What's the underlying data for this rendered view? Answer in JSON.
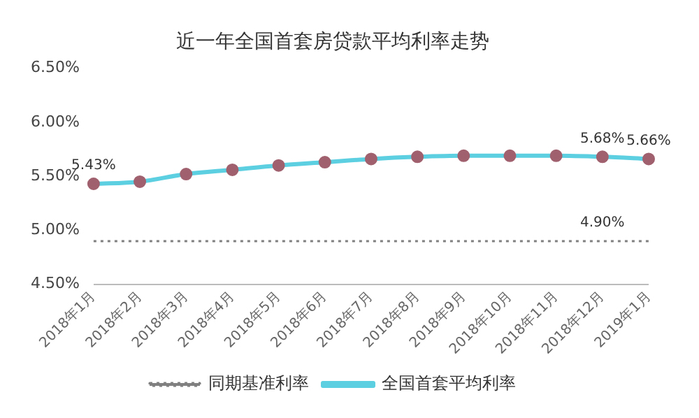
{
  "chart_data": {
    "type": "line",
    "title": "近一年全国首套房贷款平均利率走势",
    "categories": [
      "2018年1月",
      "2018年2月",
      "2018年3月",
      "2018年4月",
      "2018年5月",
      "2018年6月",
      "2018年7月",
      "2018年8月",
      "2018年9月",
      "2018年10月",
      "2018年11月",
      "2018年12月",
      "2019年1月"
    ],
    "series": [
      {
        "name": "同期基准利率",
        "color": "#808080",
        "line_style": "dotted",
        "marker": "none",
        "values": [
          4.9,
          4.9,
          4.9,
          4.9,
          4.9,
          4.9,
          4.9,
          4.9,
          4.9,
          4.9,
          4.9,
          4.9,
          4.9
        ],
        "value_labels": [
          null,
          null,
          null,
          null,
          null,
          null,
          null,
          null,
          null,
          null,
          null,
          "4.90%",
          null
        ]
      },
      {
        "name": "全国首套平均利率",
        "color": "#5ccfe0",
        "line_style": "solid",
        "marker": "circle",
        "values": [
          5.43,
          5.45,
          5.52,
          5.56,
          5.6,
          5.63,
          5.66,
          5.68,
          5.69,
          5.69,
          5.69,
          5.68,
          5.66
        ],
        "value_labels": [
          "5.43%",
          null,
          null,
          null,
          null,
          null,
          null,
          null,
          null,
          null,
          null,
          "5.68%",
          "5.66%"
        ]
      }
    ],
    "ylim": [
      4.5,
      6.5
    ],
    "yticks": [
      {
        "value": 4.5,
        "label": "4.50%"
      },
      {
        "value": 5,
        "label": "5.00%"
      },
      {
        "value": 5.5,
        "label": "5.50%"
      },
      {
        "value": 6,
        "label": "6.00%"
      },
      {
        "value": 6.5,
        "label": "6.50%"
      }
    ],
    "grid": false,
    "legend": "bottom"
  }
}
